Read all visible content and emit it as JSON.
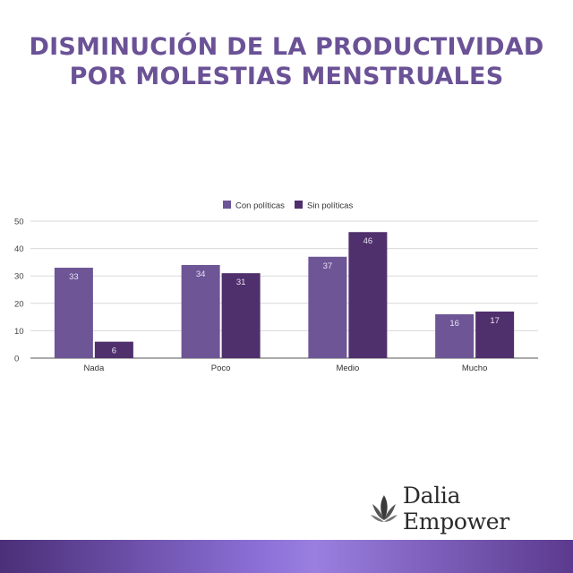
{
  "title": {
    "line1": "DISMINUCIÓN DE LA PRODUCTIVIDAD",
    "line2": "POR MOLESTIAS MENSTRUALES"
  },
  "chart_data": {
    "type": "bar",
    "title": "",
    "xlabel": "",
    "ylabel": "",
    "categories": [
      "Nada",
      "Poco",
      "Medio",
      "Mucho"
    ],
    "series": [
      {
        "name": "Con políticas",
        "values": [
          33,
          34,
          37,
          16
        ],
        "color": "#6d5596"
      },
      {
        "name": "Sin políticas",
        "values": [
          6,
          31,
          46,
          17
        ],
        "color": "#4f2f6c"
      }
    ],
    "ylim": [
      0,
      50
    ],
    "yticks": [
      0,
      10,
      20,
      30,
      40,
      50
    ],
    "grid": true,
    "legend_position": "top-center",
    "data_labels": true
  },
  "brand": {
    "name": "Dalia Empower",
    "logo_icon": "lotus-icon"
  },
  "colors": {
    "title": "#6b5296",
    "footer_gradient_mid": "#9a7fe0"
  }
}
